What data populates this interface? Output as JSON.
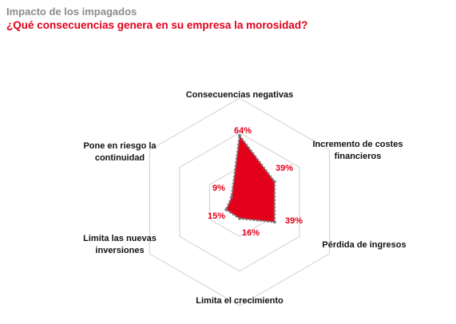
{
  "header": {
    "kicker": "Impacto de los impagados",
    "question": "¿Qué consecuencias genera en su empresa la morosidad?"
  },
  "colors": {
    "accent": "#e2001a",
    "kicker": "#8c8c8c",
    "grid": "#d0d0d0",
    "outline": "#777777",
    "label": "#111111"
  },
  "chart_data": {
    "type": "radar",
    "title": "¿Qué consecuencias genera en su empresa la morosidad?",
    "subtitle": "Impacto de los impagados",
    "rmax": 100,
    "grid_levels": 3,
    "categories": [
      [
        "Consecuencias negativas"
      ],
      [
        "Incremento de costes",
        "financieros"
      ],
      [
        "Pérdida de ingresos"
      ],
      [
        "Limita el crecimiento"
      ],
      [
        "Limita las nuevas",
        "inversiones"
      ],
      [
        "Pone en riesgo la",
        "continuidad"
      ]
    ],
    "values": [
      64,
      39,
      39,
      16,
      15,
      9
    ],
    "value_labels": [
      "64%",
      "39%",
      "39%",
      "16%",
      "15%",
      "9%"
    ]
  }
}
